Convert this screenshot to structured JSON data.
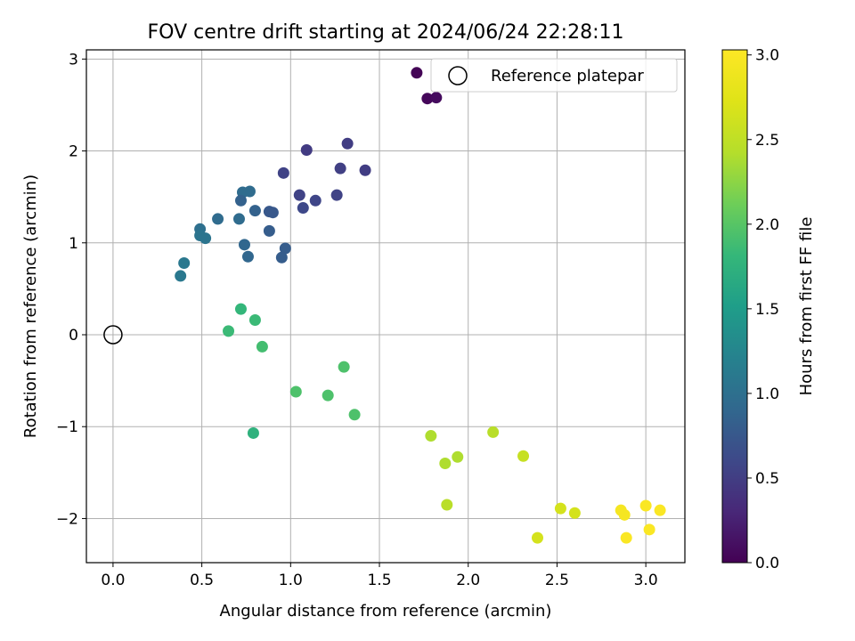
{
  "chart_data": {
    "type": "scatter",
    "title": "FOV centre drift starting at 2024/06/24 22:28:11",
    "xlabel": "Angular distance from reference (arcmin)",
    "ylabel": "Rotation from reference (arcmin)",
    "xlim": [
      -0.15,
      3.22
    ],
    "ylim": [
      -2.48,
      3.1
    ],
    "xticks": [
      0.0,
      0.5,
      1.0,
      1.5,
      2.0,
      2.5,
      3.0
    ],
    "xtick_labels": [
      "0.0",
      "0.5",
      "1.0",
      "1.5",
      "2.0",
      "2.5",
      "3.0"
    ],
    "yticks": [
      -2,
      -1,
      0,
      1,
      2,
      3
    ],
    "ytick_labels": [
      "−2",
      "−1",
      "0",
      "1",
      "2",
      "3"
    ],
    "grid": true,
    "legend": {
      "placement": "top-right",
      "entries": [
        "Reference platepar"
      ]
    },
    "reference_point": {
      "x": 0.0,
      "y": 0.0,
      "label": "Reference platepar"
    },
    "colorbar": {
      "label": "Hours from first FF file",
      "colormap": "viridis",
      "range": [
        0.0,
        3.03
      ],
      "ticks": [
        0.0,
        0.5,
        1.0,
        1.5,
        2.0,
        2.5,
        3.0
      ],
      "tick_labels": [
        "0.0",
        "0.5",
        "1.0",
        "1.5",
        "2.0",
        "2.5",
        "3.0"
      ]
    },
    "points": [
      {
        "x": 1.71,
        "y": 2.85,
        "t": 0.02
      },
      {
        "x": 1.77,
        "y": 2.57,
        "t": 0.05
      },
      {
        "x": 1.82,
        "y": 2.58,
        "t": 0.08
      },
      {
        "x": 1.32,
        "y": 2.08,
        "t": 0.5
      },
      {
        "x": 1.09,
        "y": 2.01,
        "t": 0.48
      },
      {
        "x": 1.28,
        "y": 1.81,
        "t": 0.52
      },
      {
        "x": 1.42,
        "y": 1.79,
        "t": 0.5
      },
      {
        "x": 0.96,
        "y": 1.76,
        "t": 0.55
      },
      {
        "x": 1.05,
        "y": 1.52,
        "t": 0.55
      },
      {
        "x": 1.26,
        "y": 1.52,
        "t": 0.55
      },
      {
        "x": 1.14,
        "y": 1.46,
        "t": 0.58
      },
      {
        "x": 1.07,
        "y": 1.38,
        "t": 0.6
      },
      {
        "x": 0.73,
        "y": 1.55,
        "t": 0.95
      },
      {
        "x": 0.77,
        "y": 1.56,
        "t": 0.95
      },
      {
        "x": 0.72,
        "y": 1.46,
        "t": 0.85
      },
      {
        "x": 0.8,
        "y": 1.35,
        "t": 0.85
      },
      {
        "x": 0.88,
        "y": 1.34,
        "t": 0.75
      },
      {
        "x": 0.9,
        "y": 1.33,
        "t": 0.75
      },
      {
        "x": 0.59,
        "y": 1.26,
        "t": 0.95
      },
      {
        "x": 0.71,
        "y": 1.26,
        "t": 0.95
      },
      {
        "x": 0.49,
        "y": 1.15,
        "t": 1.0
      },
      {
        "x": 0.49,
        "y": 1.08,
        "t": 1.05
      },
      {
        "x": 0.52,
        "y": 1.05,
        "t": 1.05
      },
      {
        "x": 0.88,
        "y": 1.13,
        "t": 0.8
      },
      {
        "x": 0.74,
        "y": 0.98,
        "t": 0.9
      },
      {
        "x": 0.97,
        "y": 0.94,
        "t": 0.8
      },
      {
        "x": 0.76,
        "y": 0.85,
        "t": 0.9
      },
      {
        "x": 0.95,
        "y": 0.84,
        "t": 0.8
      },
      {
        "x": 0.4,
        "y": 0.78,
        "t": 1.1
      },
      {
        "x": 0.38,
        "y": 0.64,
        "t": 1.1
      },
      {
        "x": 0.72,
        "y": 0.28,
        "t": 1.8
      },
      {
        "x": 0.8,
        "y": 0.16,
        "t": 1.85
      },
      {
        "x": 0.65,
        "y": 0.04,
        "t": 1.85
      },
      {
        "x": 0.84,
        "y": -0.13,
        "t": 1.9
      },
      {
        "x": 1.3,
        "y": -0.35,
        "t": 1.95
      },
      {
        "x": 1.03,
        "y": -0.62,
        "t": 1.95
      },
      {
        "x": 1.21,
        "y": -0.66,
        "t": 1.95
      },
      {
        "x": 1.36,
        "y": -0.87,
        "t": 1.95
      },
      {
        "x": 0.79,
        "y": -1.07,
        "t": 1.75
      },
      {
        "x": 1.79,
        "y": -1.1,
        "t": 2.4
      },
      {
        "x": 1.94,
        "y": -1.33,
        "t": 2.4
      },
      {
        "x": 1.87,
        "y": -1.4,
        "t": 2.4
      },
      {
        "x": 2.14,
        "y": -1.06,
        "t": 2.45
      },
      {
        "x": 2.31,
        "y": -1.32,
        "t": 2.55
      },
      {
        "x": 1.88,
        "y": -1.85,
        "t": 2.45
      },
      {
        "x": 2.52,
        "y": -1.89,
        "t": 2.65
      },
      {
        "x": 2.6,
        "y": -1.94,
        "t": 2.65
      },
      {
        "x": 2.39,
        "y": -2.21,
        "t": 2.65
      },
      {
        "x": 2.86,
        "y": -1.91,
        "t": 2.95
      },
      {
        "x": 2.88,
        "y": -1.96,
        "t": 2.95
      },
      {
        "x": 3.0,
        "y": -1.86,
        "t": 3.0
      },
      {
        "x": 3.08,
        "y": -1.91,
        "t": 3.0
      },
      {
        "x": 3.02,
        "y": -2.12,
        "t": 3.0
      },
      {
        "x": 2.89,
        "y": -2.21,
        "t": 3.0
      }
    ]
  }
}
